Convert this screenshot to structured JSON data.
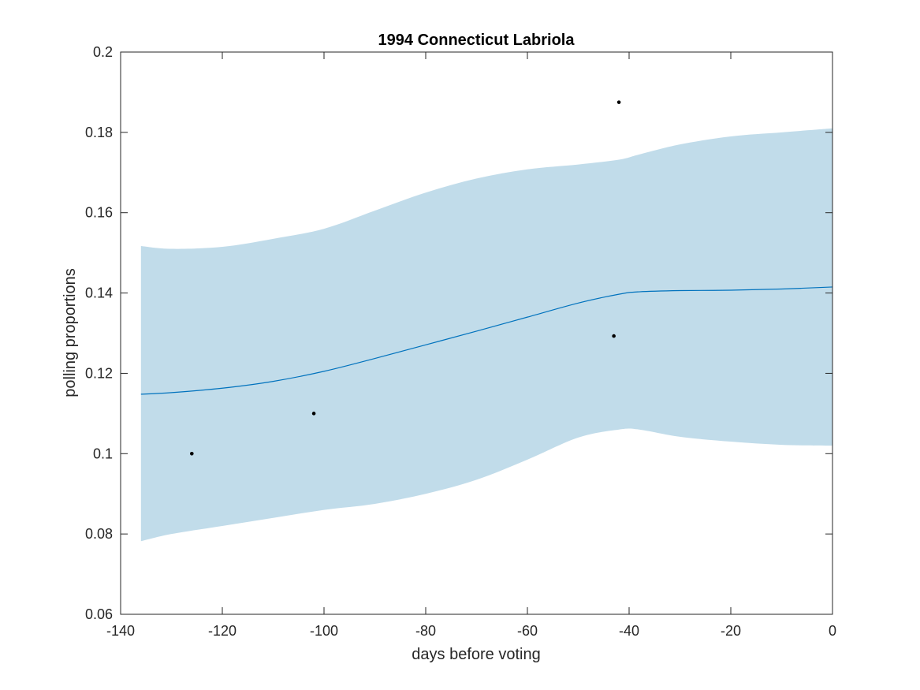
{
  "chart_data": {
    "type": "line",
    "title": "1994 Connecticut Labriola",
    "xlabel": "days before voting",
    "ylabel": "polling proportions",
    "xlim": [
      -140,
      0
    ],
    "ylim": [
      0.06,
      0.2
    ],
    "xticks": [
      -140,
      -120,
      -100,
      -80,
      -60,
      -40,
      -20,
      0
    ],
    "xtick_labels": [
      "-140",
      "-120",
      "-100",
      "-80",
      "-60",
      "-40",
      "-20",
      "0"
    ],
    "yticks": [
      0.06,
      0.08,
      0.1,
      0.12,
      0.14,
      0.16,
      0.18,
      0.2
    ],
    "ytick_labels": [
      "0.06",
      "0.08",
      "0.1",
      "0.12",
      "0.14",
      "0.16",
      "0.18",
      "0.2"
    ],
    "grid": false,
    "legend": "none",
    "colors": {
      "band": "#c1dcea",
      "line": "#0072bd",
      "points": "#000000",
      "axes": "#262626"
    },
    "band": {
      "x": [
        -136,
        -130,
        -120,
        -110,
        -100,
        -90,
        -80,
        -70,
        -60,
        -50,
        -42,
        -38,
        -30,
        -20,
        -10,
        0
      ],
      "upper": [
        0.1517,
        0.151,
        0.1515,
        0.1535,
        0.156,
        0.1605,
        0.165,
        0.1685,
        0.1708,
        0.172,
        0.1732,
        0.1745,
        0.177,
        0.179,
        0.18,
        0.181
      ],
      "lower": [
        0.0782,
        0.08,
        0.082,
        0.084,
        0.086,
        0.0875,
        0.09,
        0.0935,
        0.0985,
        0.104,
        0.106,
        0.106,
        0.1042,
        0.103,
        0.1022,
        0.102
      ]
    },
    "series": [
      {
        "x": [
          -136,
          -130,
          -120,
          -110,
          -100,
          -90,
          -80,
          -70,
          -60,
          -50,
          -42,
          -38,
          -30,
          -20,
          -10,
          0
        ],
        "values": [
          0.1148,
          0.1152,
          0.1163,
          0.118,
          0.1205,
          0.1237,
          0.1271,
          0.1305,
          0.134,
          0.1375,
          0.1397,
          0.1403,
          0.1406,
          0.1407,
          0.141,
          0.1415
        ]
      }
    ],
    "points": [
      {
        "x": -126,
        "y": 0.1
      },
      {
        "x": -102,
        "y": 0.11
      },
      {
        "x": -43,
        "y": 0.1293
      },
      {
        "x": -42,
        "y": 0.1875
      }
    ]
  }
}
